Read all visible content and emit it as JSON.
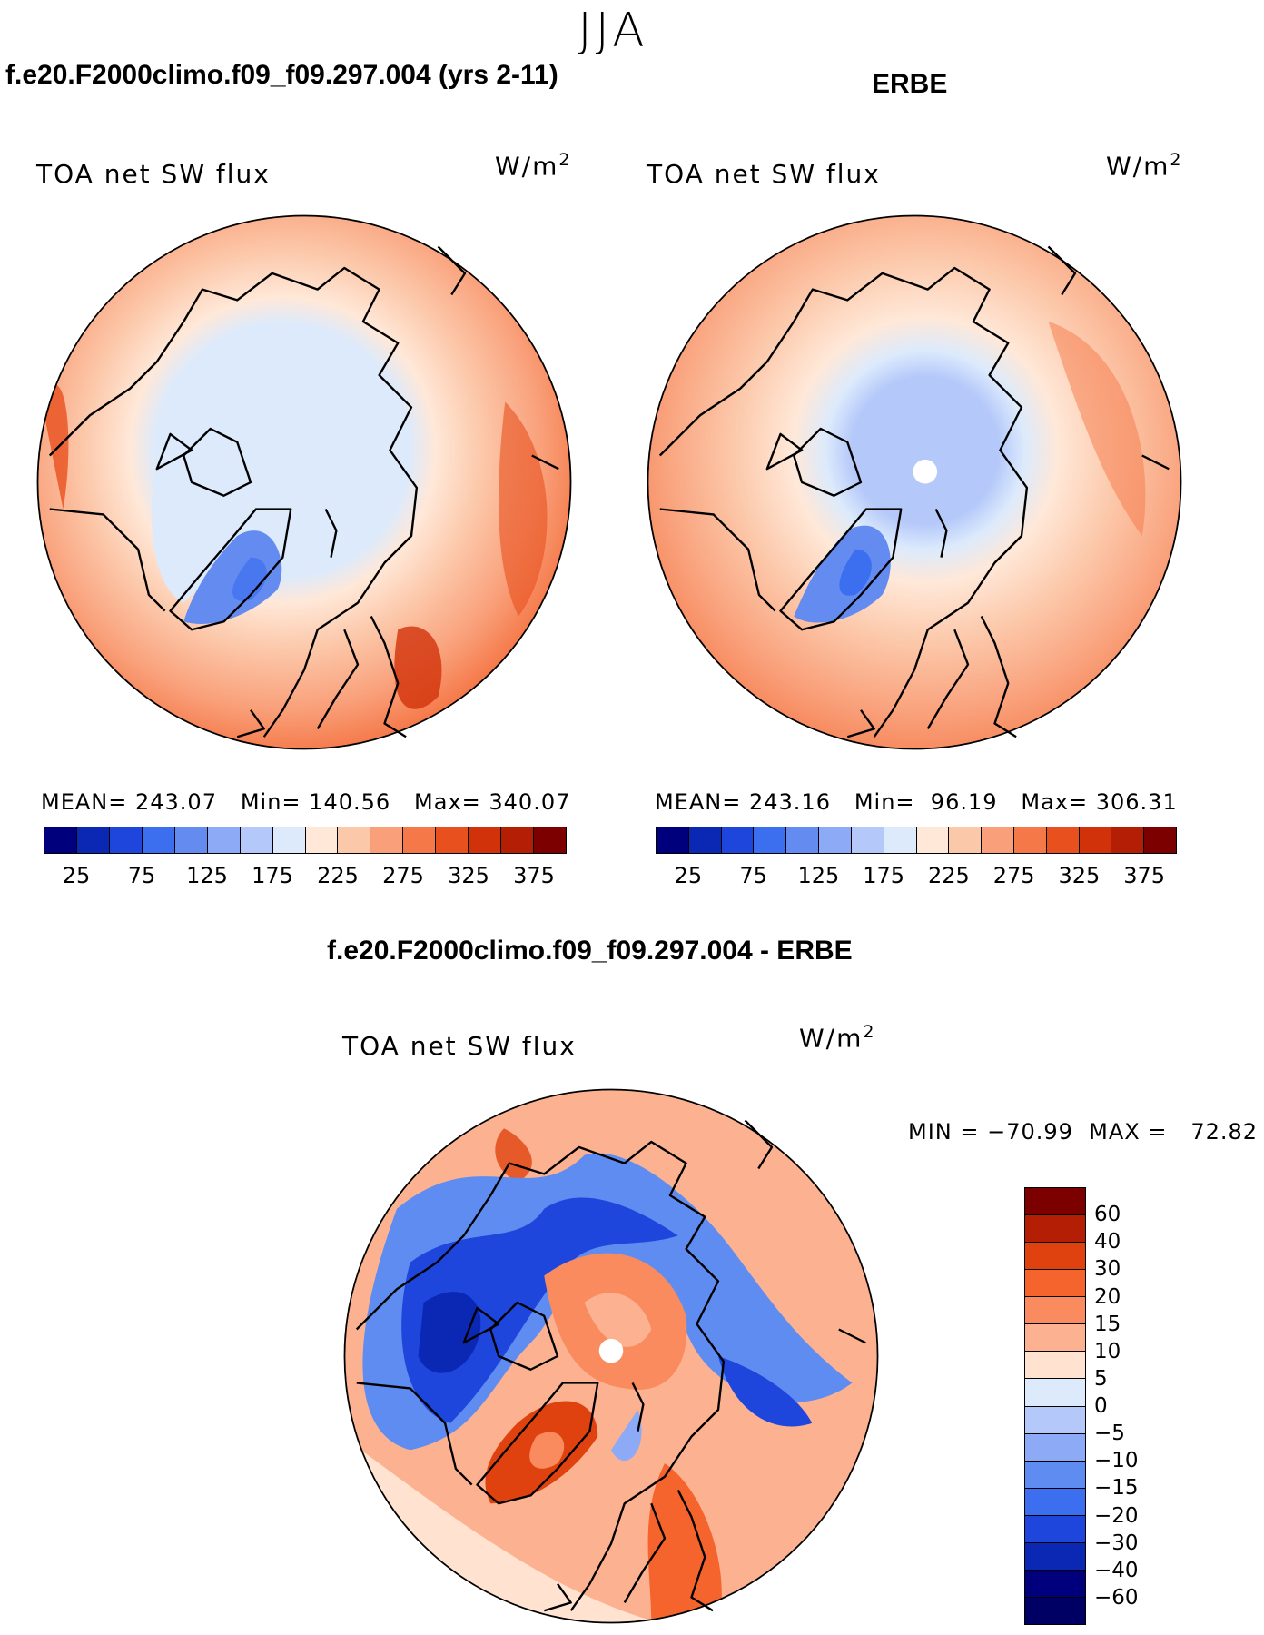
{
  "figure": {
    "season": "JJA",
    "model_title": "f.e20.F2000climo.f09_f09.297.004 (yrs 2-11)",
    "obs_title": "ERBE",
    "diff_title": "f.e20.F2000climo.f09_f09.297.004 - ERBE"
  },
  "panels": {
    "model": {
      "variable": "TOA net SW flux",
      "units": "W/m",
      "units_exp": "2",
      "stats": "MEAN= 243.07   Min= 140.56   Max= 340.07",
      "levels": [
        25,
        75,
        125,
        175,
        225,
        275,
        325,
        375
      ],
      "colors": [
        "#00007d",
        "#0a28b4",
        "#1e46dc",
        "#3c6ef0",
        "#648cf0",
        "#8caaf5",
        "#b4c8fa",
        "#dceafc",
        "#ffe8d8",
        "#fcc8aa",
        "#f9a07a",
        "#f57848",
        "#e8501e",
        "#d2320a",
        "#b41e05",
        "#7d0000"
      ]
    },
    "obs": {
      "variable": "TOA net SW flux",
      "units": "W/m",
      "units_exp": "2",
      "stats": "MEAN= 243.16   Min=  96.19   Max= 306.31",
      "levels": [
        25,
        75,
        125,
        175,
        225,
        275,
        325,
        375
      ],
      "colors": [
        "#00007d",
        "#0a28b4",
        "#1e46dc",
        "#3c6ef0",
        "#648cf0",
        "#8caaf5",
        "#b4c8fa",
        "#dceafc",
        "#ffe8d8",
        "#fcc8aa",
        "#f9a07a",
        "#f57848",
        "#e8501e",
        "#d2320a",
        "#b41e05",
        "#7d0000"
      ]
    },
    "diff": {
      "variable": "TOA net SW flux",
      "units": "W/m",
      "units_exp": "2",
      "stats": "MIN = −70.99  MAX =   72.82",
      "levels": [
        60,
        40,
        30,
        20,
        15,
        10,
        5,
        0,
        "−5",
        "−10",
        "−15",
        "−20",
        "−30",
        "−40",
        "−60"
      ],
      "colors": [
        "#7d0000",
        "#b41e05",
        "#e0420f",
        "#f5642d",
        "#f98b5f",
        "#fcb290",
        "#ffe3d0",
        "#dceafc",
        "#b4c8fa",
        "#8caaf5",
        "#5f8cf0",
        "#3c6ef0",
        "#1e46dc",
        "#0a28b4",
        "#00007d",
        "#000064"
      ]
    }
  }
}
